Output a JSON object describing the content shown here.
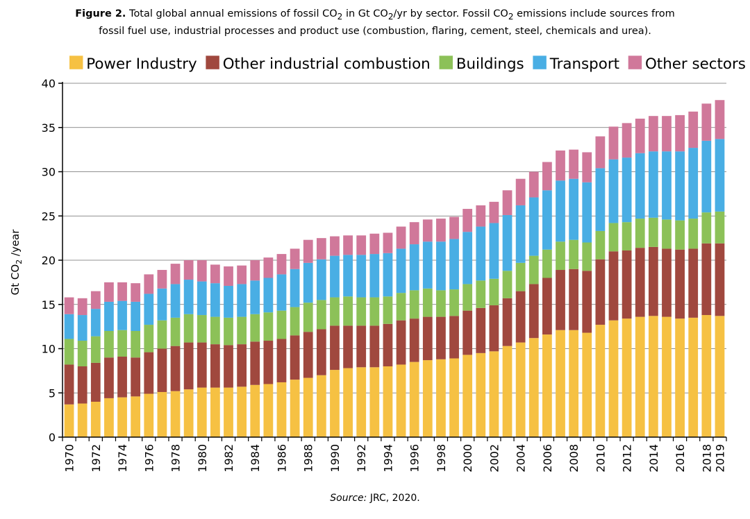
{
  "figure": {
    "caption_label": "Figure 2.",
    "caption_pre": "Total global annual emissions of fossil CO",
    "caption_mid1": "in Gt CO",
    "caption_mid2": "/yr by sector. Fossil CO",
    "caption_post1": "emissions include sources from",
    "caption_line2": "fossil fuel use, industrial processes and product use (combustion, flaring, cement, steel, chemicals and urea).",
    "sub2": "2",
    "source_label": "Source:",
    "source_text": "JRC, 2020."
  },
  "chart_data": {
    "type": "bar",
    "stacked": true,
    "title": "",
    "ylabel": "Gt CO2 /year",
    "ylabel_main": "Gt CO",
    "ylabel_sub": "2",
    "ylabel_rest": " /year",
    "xlabel": "",
    "ylim": [
      0,
      40
    ],
    "yticks": [
      0,
      5,
      10,
      15,
      20,
      25,
      30,
      35,
      40
    ],
    "grid": "horizontal",
    "legend_position": "top",
    "categories": [
      1970,
      1971,
      1972,
      1973,
      1974,
      1975,
      1976,
      1977,
      1978,
      1979,
      1980,
      1981,
      1982,
      1983,
      1984,
      1985,
      1986,
      1987,
      1988,
      1989,
      1990,
      1991,
      1992,
      1993,
      1994,
      1995,
      1996,
      1997,
      1998,
      1999,
      2000,
      2001,
      2002,
      2003,
      2004,
      2005,
      2006,
      2007,
      2008,
      2009,
      2010,
      2011,
      2012,
      2013,
      2014,
      2015,
      2016,
      2017,
      2018,
      2019
    ],
    "xtick_labels": [
      1970,
      1972,
      1974,
      1976,
      1978,
      1980,
      1982,
      1984,
      1986,
      1988,
      1990,
      1992,
      1994,
      1996,
      1998,
      2000,
      2002,
      2004,
      2006,
      2008,
      2010,
      2012,
      2014,
      2016,
      2018,
      2019
    ],
    "series": [
      {
        "name": "Power Industry",
        "color": "#f6c143",
        "values": [
          3.7,
          3.8,
          4.0,
          4.4,
          4.5,
          4.6,
          4.9,
          5.1,
          5.2,
          5.4,
          5.6,
          5.6,
          5.6,
          5.7,
          5.9,
          6.0,
          6.2,
          6.5,
          6.7,
          7.0,
          7.6,
          7.8,
          7.9,
          7.9,
          8.0,
          8.2,
          8.5,
          8.7,
          8.8,
          8.9,
          9.3,
          9.5,
          9.7,
          10.3,
          10.7,
          11.2,
          11.6,
          12.1,
          12.1,
          11.8,
          12.7,
          13.2,
          13.4,
          13.6,
          13.7,
          13.6,
          13.4,
          13.5,
          13.8,
          13.7
        ]
      },
      {
        "name": "Other industrial combustion",
        "color": "#a0483e",
        "values": [
          4.5,
          4.2,
          4.4,
          4.6,
          4.6,
          4.4,
          4.7,
          4.9,
          5.1,
          5.3,
          5.1,
          4.9,
          4.8,
          4.8,
          4.9,
          4.9,
          4.9,
          5.0,
          5.2,
          5.2,
          5.0,
          4.8,
          4.7,
          4.7,
          4.8,
          5.0,
          4.9,
          4.9,
          4.8,
          4.8,
          5.0,
          5.1,
          5.2,
          5.4,
          5.8,
          6.1,
          6.4,
          6.8,
          6.9,
          7.0,
          7.4,
          7.8,
          7.7,
          7.8,
          7.8,
          7.7,
          7.8,
          7.8,
          8.1,
          8.2
        ]
      },
      {
        "name": "Buildings",
        "color": "#8cc158",
        "values": [
          2.9,
          2.9,
          3.0,
          3.0,
          3.0,
          3.0,
          3.1,
          3.2,
          3.2,
          3.2,
          3.1,
          3.1,
          3.1,
          3.1,
          3.1,
          3.2,
          3.2,
          3.2,
          3.3,
          3.3,
          3.2,
          3.3,
          3.2,
          3.2,
          3.1,
          3.1,
          3.2,
          3.2,
          3.0,
          3.0,
          3.0,
          3.1,
          3.0,
          3.1,
          3.2,
          3.2,
          3.2,
          3.2,
          3.3,
          3.2,
          3.2,
          3.2,
          3.2,
          3.3,
          3.3,
          3.3,
          3.3,
          3.4,
          3.5,
          3.6
        ]
      },
      {
        "name": "Transport",
        "color": "#49aee4",
        "values": [
          2.8,
          2.9,
          3.1,
          3.3,
          3.3,
          3.3,
          3.5,
          3.6,
          3.8,
          3.9,
          3.8,
          3.8,
          3.6,
          3.7,
          3.8,
          3.9,
          4.1,
          4.3,
          4.5,
          4.6,
          4.7,
          4.7,
          4.8,
          4.9,
          4.9,
          5.0,
          5.2,
          5.3,
          5.5,
          5.7,
          5.9,
          6.1,
          6.3,
          6.3,
          6.5,
          6.6,
          6.7,
          6.9,
          6.9,
          6.8,
          7.1,
          7.2,
          7.3,
          7.4,
          7.5,
          7.7,
          7.8,
          8.0,
          8.1,
          8.2
        ]
      },
      {
        "name": "Other sectors",
        "color": "#d0789a",
        "values": [
          1.9,
          1.9,
          2.0,
          2.2,
          2.1,
          2.1,
          2.2,
          2.1,
          2.3,
          2.2,
          2.4,
          2.1,
          2.2,
          2.1,
          2.3,
          2.3,
          2.3,
          2.3,
          2.6,
          2.4,
          2.2,
          2.2,
          2.2,
          2.3,
          2.3,
          2.5,
          2.5,
          2.5,
          2.6,
          2.5,
          2.6,
          2.4,
          2.4,
          2.8,
          3.0,
          2.9,
          3.2,
          3.4,
          3.3,
          3.4,
          3.6,
          3.7,
          3.9,
          3.9,
          4.0,
          4.0,
          4.1,
          4.1,
          4.2,
          4.4
        ]
      }
    ]
  }
}
